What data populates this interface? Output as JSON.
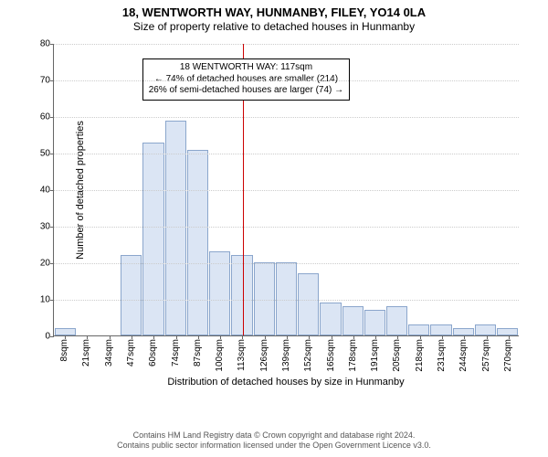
{
  "title": "18, WENTWORTH WAY, HUNMANBY, FILEY, YO14 0LA",
  "subtitle": "Size of property relative to detached houses in Hunmanby",
  "chart": {
    "type": "histogram",
    "ylabel": "Number of detached properties",
    "xlabel": "Distribution of detached houses by size in Hunmanby",
    "ylim": [
      0,
      80
    ],
    "ytick_step": 10,
    "bar_fill": "#dbe5f4",
    "bar_border": "#8ba6cc",
    "grid_color": "#cccccc",
    "axis_color": "#666666",
    "background_color": "#ffffff",
    "marker_color": "#cc0000",
    "marker_position": 0.405,
    "x_categories": [
      "8sqm",
      "21sqm",
      "34sqm",
      "47sqm",
      "60sqm",
      "74sqm",
      "87sqm",
      "100sqm",
      "113sqm",
      "126sqm",
      "139sqm",
      "152sqm",
      "165sqm",
      "178sqm",
      "191sqm",
      "205sqm",
      "218sqm",
      "231sqm",
      "244sqm",
      "257sqm",
      "270sqm"
    ],
    "values": [
      2,
      0,
      0,
      22,
      53,
      59,
      51,
      23,
      22,
      20,
      20,
      17,
      9,
      8,
      7,
      8,
      3,
      3,
      2,
      3,
      2
    ],
    "annotation_left_pct": 19,
    "annotation": {
      "line1": "18 WENTWORTH WAY: 117sqm",
      "line2": "← 74% of detached houses are smaller (214)",
      "line3": "26% of semi-detached houses are larger (74) →"
    },
    "title_fontsize": 13,
    "subtitle_fontsize": 12,
    "label_fontsize": 11,
    "tick_fontsize": 10,
    "annot_fontsize": 10
  },
  "footer": {
    "line1": "Contains HM Land Registry data © Crown copyright and database right 2024.",
    "line2": "Contains public sector information licensed under the Open Government Licence v3.0."
  }
}
